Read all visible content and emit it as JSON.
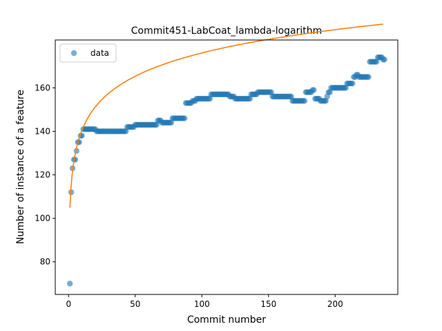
{
  "chart_data": {
    "type": "scatter",
    "title": "Commit451-LabCoat_lambda-logarithm",
    "xlabel": "Commit number",
    "ylabel": "Number of instance of a feature",
    "xlim": [
      -10,
      247
    ],
    "ylim": [
      65,
      182
    ],
    "xticks": [
      0,
      50,
      100,
      150,
      200
    ],
    "yticks": [
      80,
      100,
      120,
      140,
      160
    ],
    "grid": false,
    "legend_position": "top-left",
    "series": [
      {
        "name": "data",
        "kind": "scatter",
        "color": "#1f77b4",
        "runs": [
          {
            "x_start": 1,
            "x_end": 1,
            "y": 70
          },
          {
            "x_start": 2,
            "x_end": 2,
            "y": 112
          },
          {
            "x_start": 3,
            "x_end": 3,
            "y": 123
          },
          {
            "x_start": 4,
            "x_end": 5,
            "y": 127
          },
          {
            "x_start": 6,
            "x_end": 6,
            "y": 131
          },
          {
            "x_start": 7,
            "x_end": 8,
            "y": 135
          },
          {
            "x_start": 9,
            "x_end": 10,
            "y": 138
          },
          {
            "x_start": 11,
            "x_end": 20,
            "y": 141
          },
          {
            "x_start": 21,
            "x_end": 43,
            "y": 140
          },
          {
            "x_start": 44,
            "x_end": 49,
            "y": 142
          },
          {
            "x_start": 50,
            "x_end": 66,
            "y": 143
          },
          {
            "x_start": 67,
            "x_end": 69,
            "y": 145
          },
          {
            "x_start": 70,
            "x_end": 77,
            "y": 144
          },
          {
            "x_start": 78,
            "x_end": 87,
            "y": 146
          },
          {
            "x_start": 88,
            "x_end": 92,
            "y": 153
          },
          {
            "x_start": 93,
            "x_end": 95,
            "y": 154
          },
          {
            "x_start": 96,
            "x_end": 106,
            "y": 155
          },
          {
            "x_start": 107,
            "x_end": 120,
            "y": 157
          },
          {
            "x_start": 121,
            "x_end": 124,
            "y": 156
          },
          {
            "x_start": 125,
            "x_end": 136,
            "y": 155
          },
          {
            "x_start": 137,
            "x_end": 141,
            "y": 157
          },
          {
            "x_start": 142,
            "x_end": 152,
            "y": 158
          },
          {
            "x_start": 153,
            "x_end": 167,
            "y": 156
          },
          {
            "x_start": 168,
            "x_end": 177,
            "y": 154
          },
          {
            "x_start": 178,
            "x_end": 182,
            "y": 158
          },
          {
            "x_start": 183,
            "x_end": 184,
            "y": 159
          },
          {
            "x_start": 185,
            "x_end": 188,
            "y": 155
          },
          {
            "x_start": 189,
            "x_end": 193,
            "y": 154
          },
          {
            "x_start": 194,
            "x_end": 194,
            "y": 156
          },
          {
            "x_start": 195,
            "x_end": 196,
            "y": 158
          },
          {
            "x_start": 197,
            "x_end": 208,
            "y": 160
          },
          {
            "x_start": 209,
            "x_end": 213,
            "y": 162
          },
          {
            "x_start": 214,
            "x_end": 215,
            "y": 165
          },
          {
            "x_start": 216,
            "x_end": 217,
            "y": 166
          },
          {
            "x_start": 218,
            "x_end": 225,
            "y": 165
          },
          {
            "x_start": 226,
            "x_end": 231,
            "y": 172
          },
          {
            "x_start": 232,
            "x_end": 235,
            "y": 174
          },
          {
            "x_start": 236,
            "x_end": 237,
            "y": 173
          }
        ]
      },
      {
        "name": "",
        "kind": "line",
        "model": "logarithmic",
        "color": "#ff7f0e",
        "x": [
          1,
          2,
          3,
          5,
          7,
          10,
          15,
          20,
          30,
          50,
          75,
          100,
          150,
          200,
          236
        ],
        "y": [
          104.9,
          115.6,
          121.9,
          129.8,
          135.0,
          140.5,
          146.8,
          151.2,
          157.4,
          165.3,
          171.6,
          176.0,
          182.3,
          186.7,
          189.3
        ]
      }
    ]
  }
}
